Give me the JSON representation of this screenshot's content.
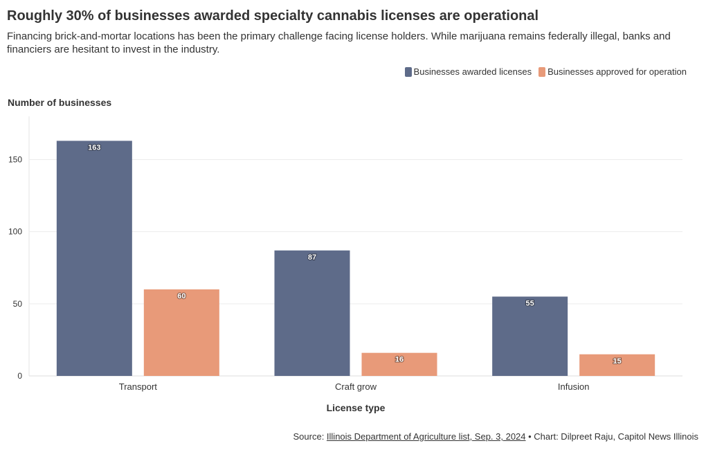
{
  "chart_data": {
    "type": "bar",
    "title": "Roughly 30% of businesses awarded specialty cannabis licenses are operational",
    "subtitle": "Financing brick-and-mortar locations has been the primary challenge facing license holders. While marijuana remains federally illegal, banks and financiers are hesitant to invest in the industry.",
    "categories": [
      "Transport",
      "Craft grow",
      "Infusion"
    ],
    "series": [
      {
        "name": "Businesses awarded licenses",
        "color": "#5e6b89",
        "values": [
          163,
          87,
          55
        ]
      },
      {
        "name": "Businesses approved for operation",
        "color": "#e89a79",
        "values": [
          60,
          16,
          15
        ]
      }
    ],
    "xlabel": "License type",
    "ylabel": "Number of businesses",
    "ylim": [
      0,
      180
    ],
    "yticks": [
      0,
      50,
      100,
      150
    ],
    "grid": true,
    "legend_position": "top-right",
    "data_labels": true
  },
  "footer": {
    "source_prefix": "Source: ",
    "source_link": "Illinois Department of Agriculture list, Sep. 3, 2024",
    "separator": " • ",
    "credit": "Chart: Dilpreet Raju, Capitol News Illinois"
  }
}
